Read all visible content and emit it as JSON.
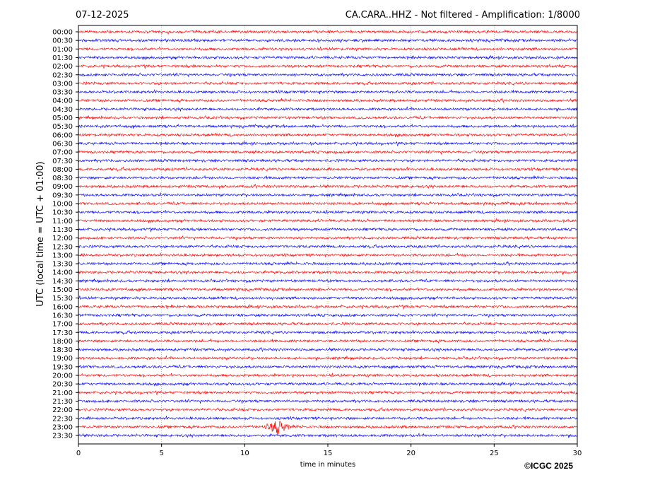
{
  "header": {
    "date": "07-12-2025",
    "station_info": "CA.CARA..HHZ - Not filtered - Amplification: 1/8000"
  },
  "copyright": "©ICGC 2025",
  "colors": {
    "trace_a": "#ff0000",
    "trace_b": "#0000ff",
    "grid": "#888888"
  },
  "chart_data": {
    "type": "line",
    "xlabel": "time in minutes",
    "ylabel": "UTC (local time = UTC + 01:00)",
    "xlim": [
      0,
      30
    ],
    "x_ticks": [
      "0",
      "5",
      "10",
      "15",
      "20",
      "25",
      "30"
    ],
    "grid": "vertical dotted at each x tick",
    "rows": [
      "00:00",
      "00:30",
      "01:00",
      "01:30",
      "02:00",
      "02:30",
      "03:00",
      "03:30",
      "04:00",
      "04:30",
      "05:00",
      "05:30",
      "06:00",
      "06:30",
      "07:00",
      "07:30",
      "08:00",
      "08:30",
      "09:00",
      "09:30",
      "10:00",
      "10:30",
      "11:00",
      "11:30",
      "12:00",
      "12:30",
      "13:00",
      "13:30",
      "14:00",
      "14:30",
      "15:00",
      "15:30",
      "16:00",
      "16:30",
      "17:00",
      "17:30",
      "18:00",
      "18:30",
      "19:00",
      "19:30",
      "20:00",
      "20:30",
      "21:00",
      "21:30",
      "22:00",
      "22:30",
      "23:00",
      "23:30"
    ],
    "row_colors": "alternating red / blue",
    "events": [
      {
        "row": "12:30",
        "start_min": 6.3,
        "end_min": 6.8,
        "relative_amplitude": 1.8
      },
      {
        "row": "23:00",
        "start_min": 11.2,
        "end_min": 12.7,
        "peak_min": 12.0,
        "relative_amplitude": 6
      }
    ]
  }
}
